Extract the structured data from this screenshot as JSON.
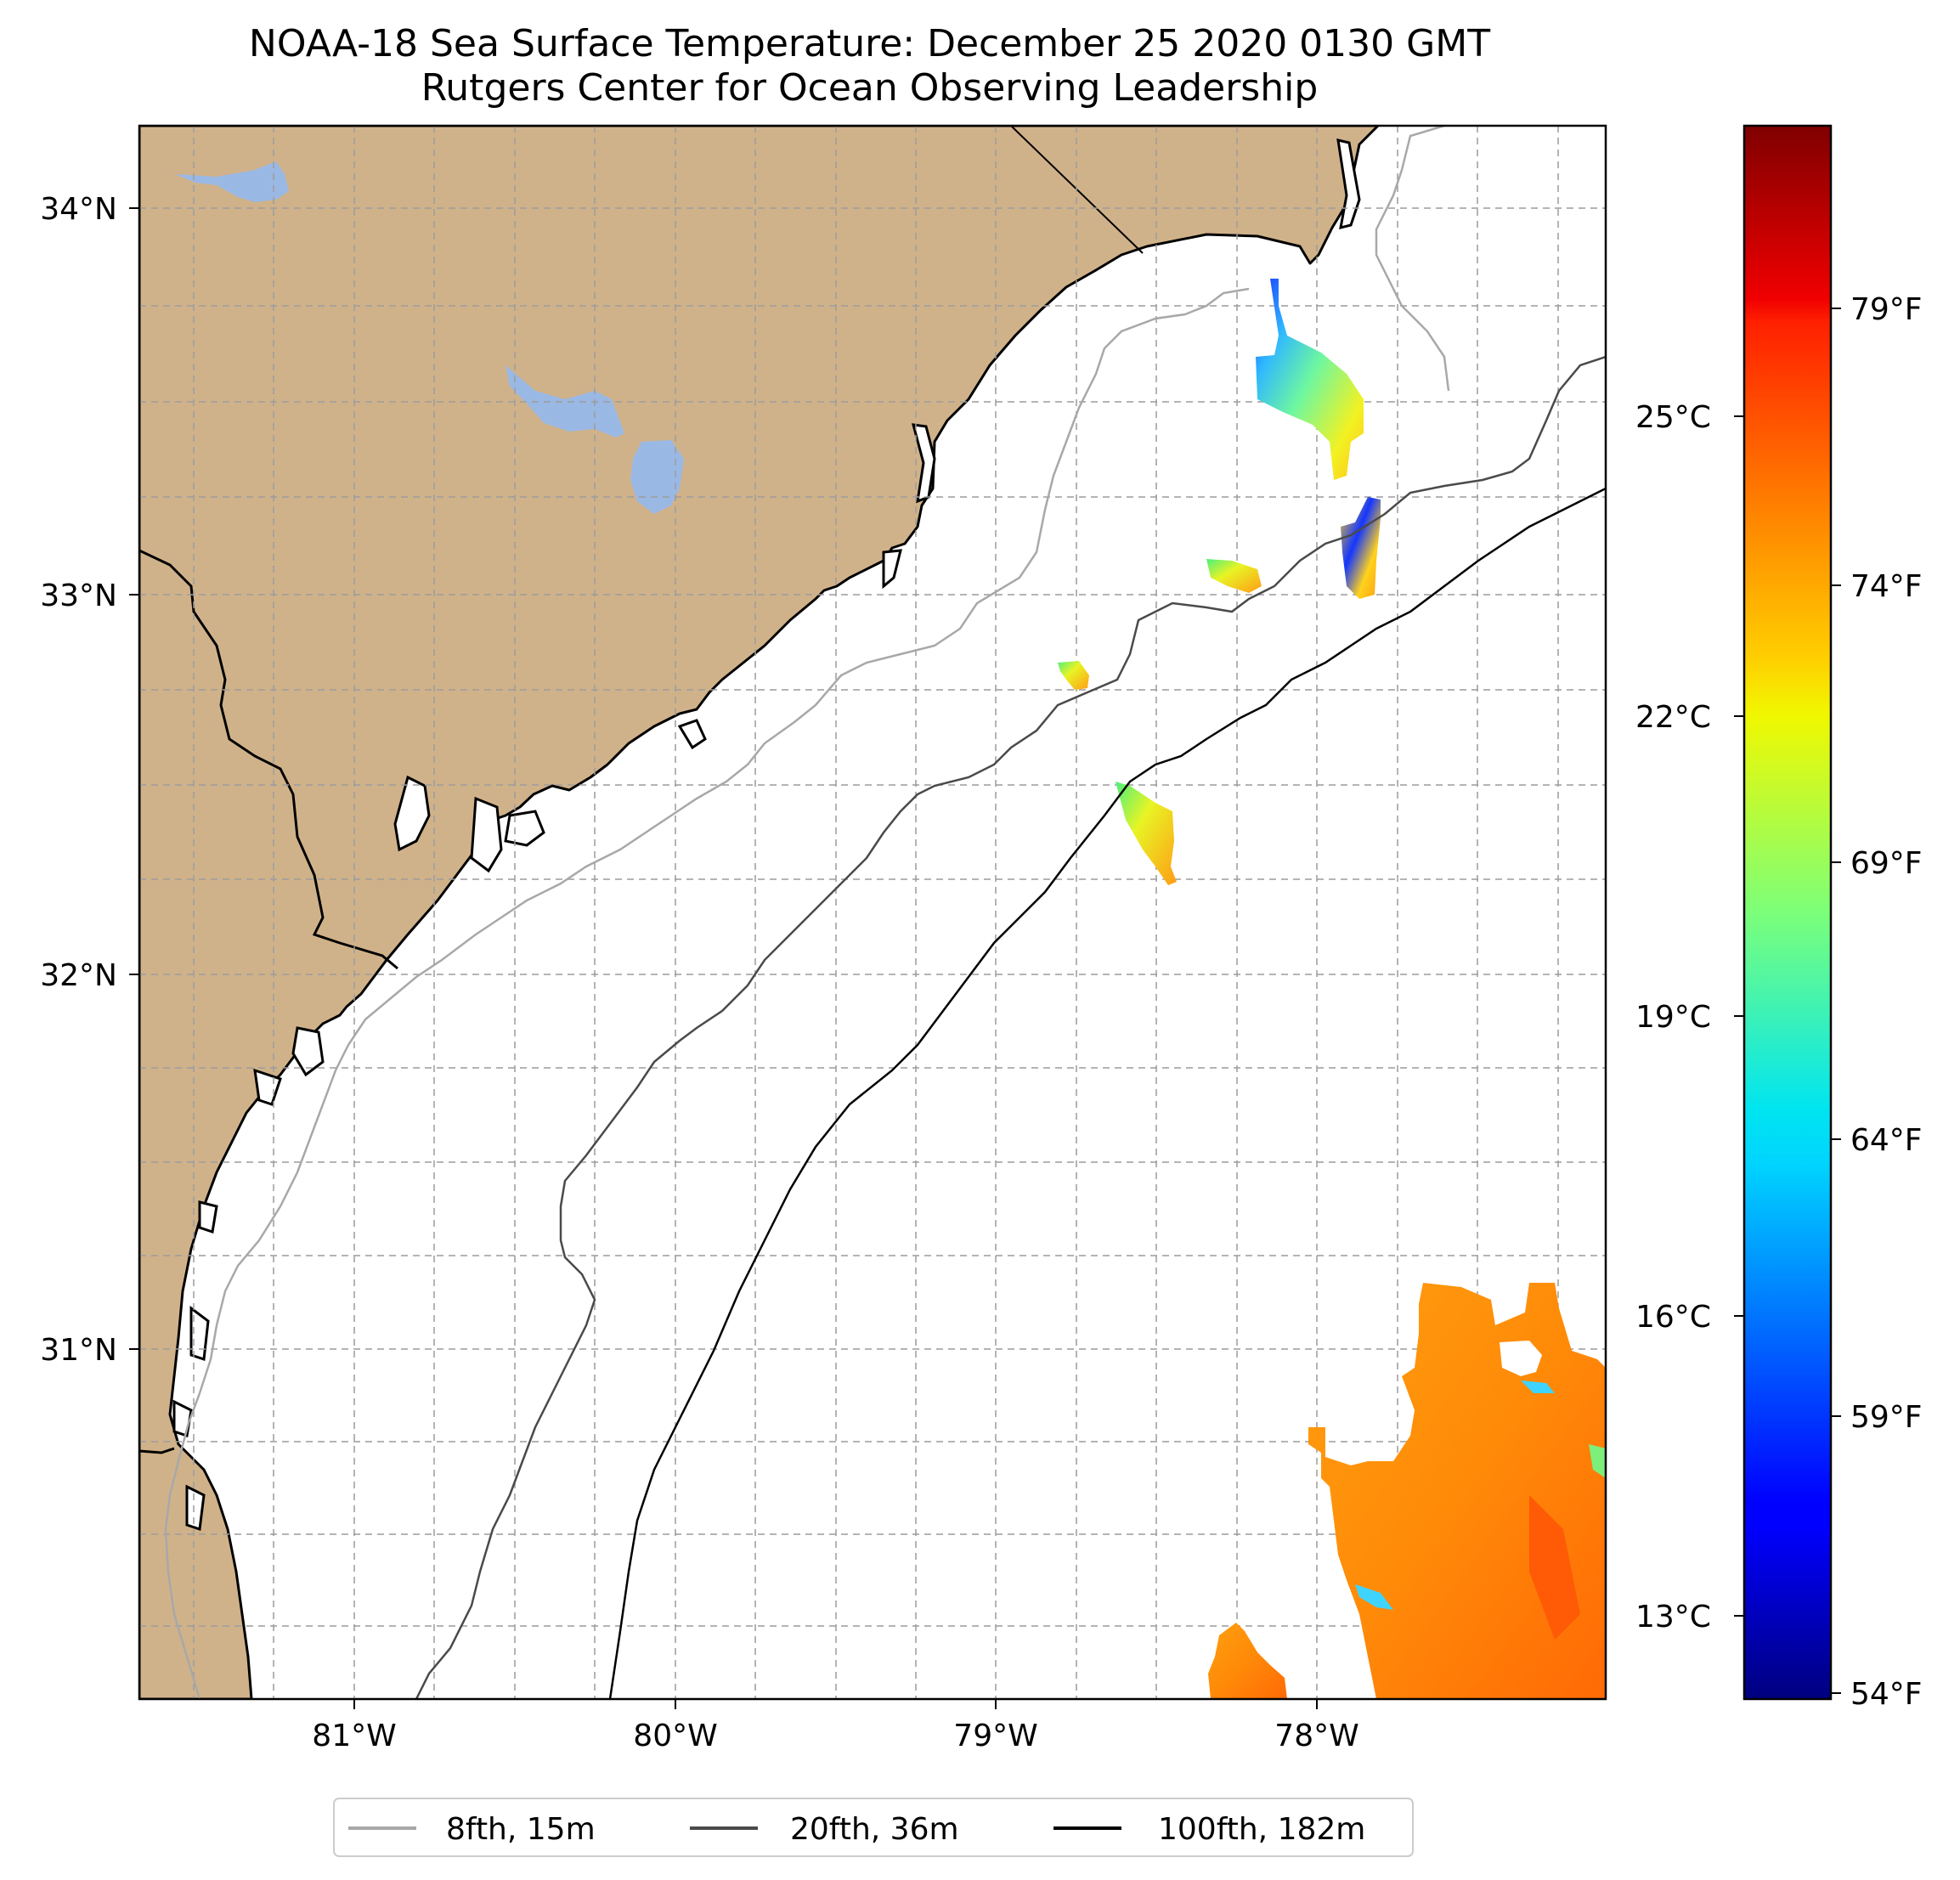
{
  "title": "NOAA-18 Sea Surface Temperature: December 25 2020 0130 GMT",
  "subtitle": "Rutgers Center for Ocean Observing Leadership",
  "map": {
    "lon_range": [
      -81.68,
      -77.12
    ],
    "lat_range": [
      30.08,
      34.22
    ],
    "lat_ticks": [
      {
        "value": 31,
        "label": "31°N"
      },
      {
        "value": 32,
        "label": "32°N"
      },
      {
        "value": 33,
        "label": "33°N"
      },
      {
        "value": 34,
        "label": "34°N"
      }
    ],
    "lon_ticks": [
      {
        "value": -81,
        "label": "81°W"
      },
      {
        "value": -80,
        "label": "80°W"
      },
      {
        "value": -79,
        "label": "79°W"
      },
      {
        "value": -78,
        "label": "78°W"
      }
    ],
    "gridlines": true,
    "land_color": "#d0b28a",
    "lake_color": "#9ab8e4"
  },
  "colorbar": {
    "colormap": "jet",
    "range_f": [
      53.6,
      82.9
    ],
    "celsius_ticks": [
      {
        "value_c": 25,
        "label": "25°C"
      },
      {
        "value_c": 22,
        "label": "22°C"
      },
      {
        "value_c": 19,
        "label": "19°C"
      },
      {
        "value_c": 16,
        "label": "16°C"
      },
      {
        "value_c": 13,
        "label": "13°C"
      }
    ],
    "fahrenheit_ticks": [
      {
        "value_f": 79,
        "label": "79°F"
      },
      {
        "value_f": 74,
        "label": "74°F"
      },
      {
        "value_f": 69,
        "label": "69°F"
      },
      {
        "value_f": 64,
        "label": "64°F"
      },
      {
        "value_f": 59,
        "label": "59°F"
      },
      {
        "value_f": 54,
        "label": "54°F"
      }
    ]
  },
  "legend": {
    "placement": "bottom-center",
    "items": [
      {
        "label": "8fth, 15m",
        "color": "#a8a8a8"
      },
      {
        "label": "20fth, 36m",
        "color": "#4a4a4a"
      },
      {
        "label": "100fth, 182m",
        "color": "#000000"
      }
    ]
  }
}
